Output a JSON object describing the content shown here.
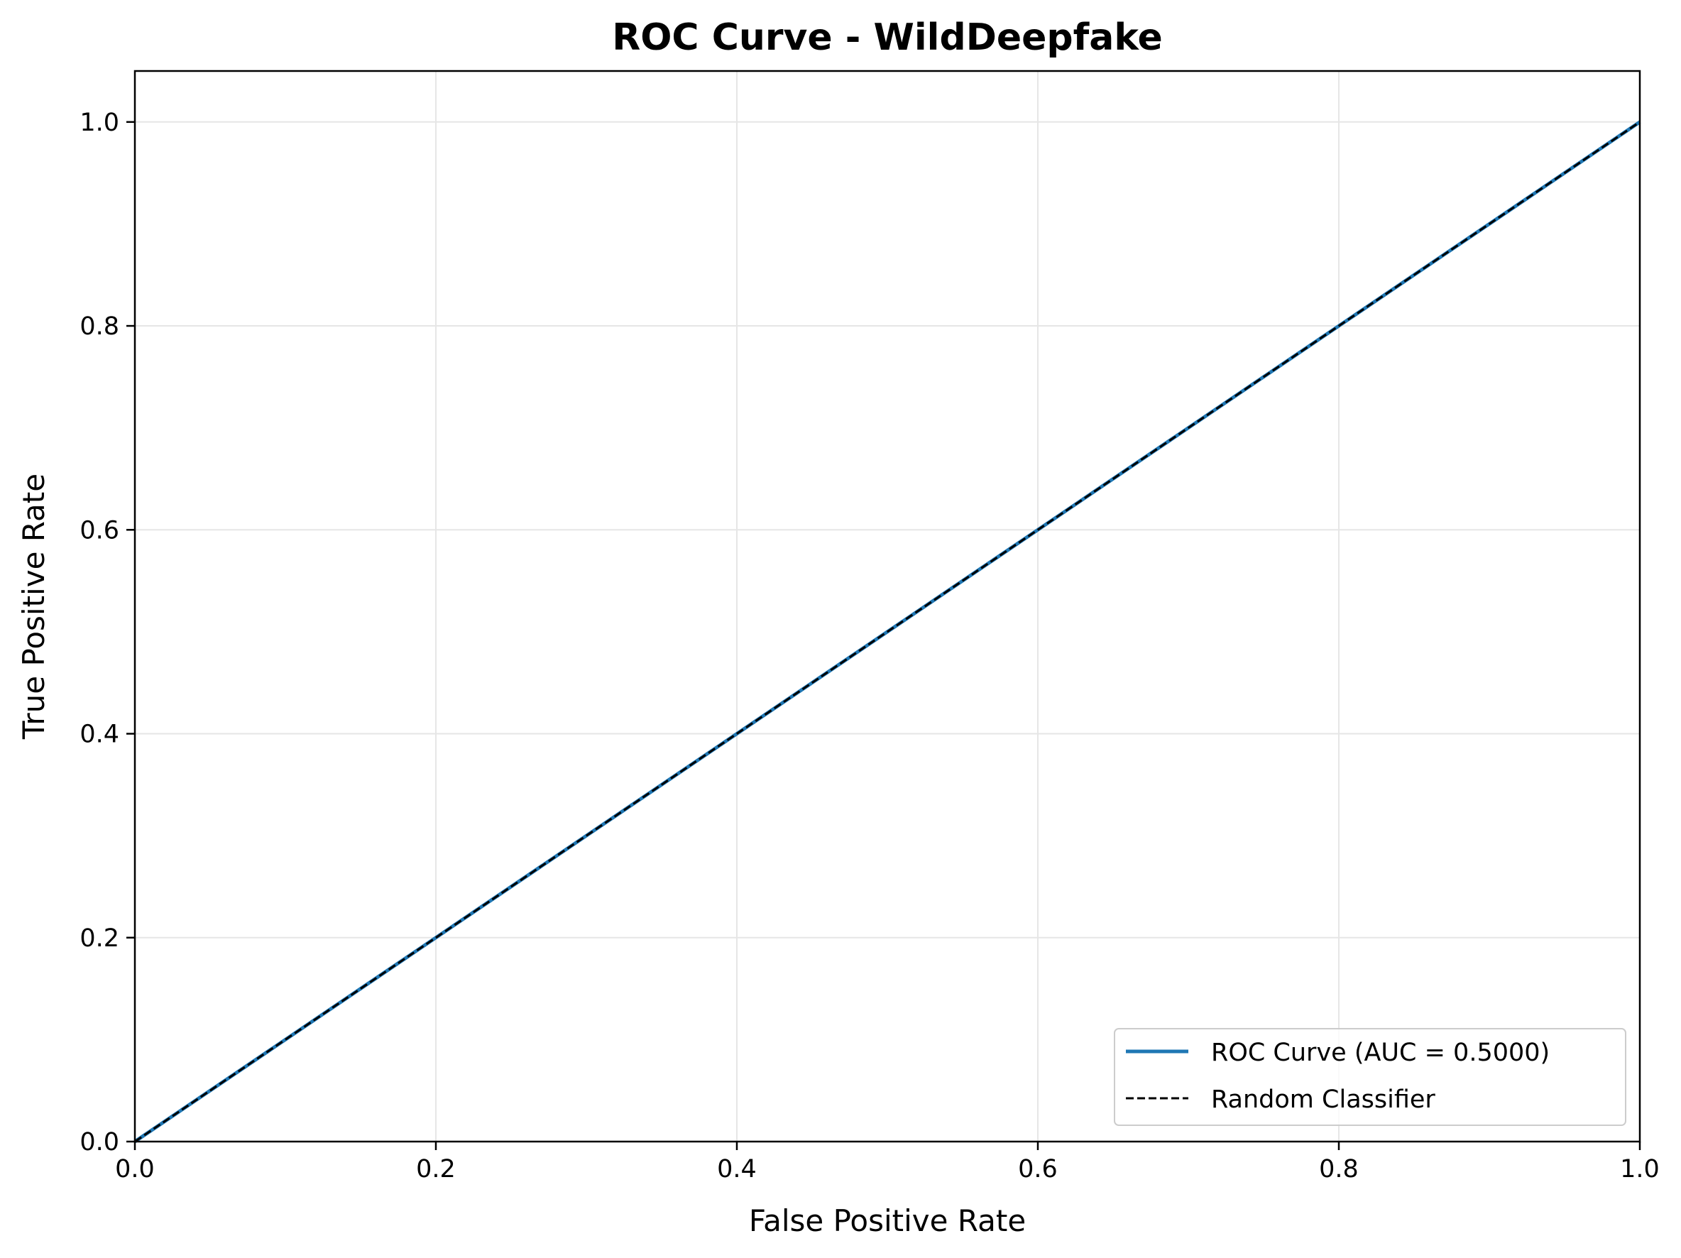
{
  "chart_data": {
    "type": "line",
    "title": "ROC Curve - WildDeepfake",
    "xlabel": "False Positive Rate",
    "ylabel": "True Positive Rate",
    "xlim": [
      0.0,
      1.0
    ],
    "ylim": [
      0.0,
      1.05
    ],
    "x_ticks": [
      0.0,
      0.2,
      0.4,
      0.6,
      0.8,
      1.0
    ],
    "y_ticks": [
      0.0,
      0.2,
      0.4,
      0.6,
      0.8,
      1.0
    ],
    "x_tick_labels": [
      "0.0",
      "0.2",
      "0.4",
      "0.6",
      "0.8",
      "1.0"
    ],
    "y_tick_labels": [
      "0.0",
      "0.2",
      "0.4",
      "0.6",
      "0.8",
      "1.0"
    ],
    "grid": true,
    "legend_position": "bottom-right",
    "series": [
      {
        "name": "ROC Curve (AUC = 0.5000)",
        "x": [
          0.0,
          1.0
        ],
        "y": [
          0.0,
          1.0
        ],
        "color": "#1f77b4",
        "style": "solid"
      },
      {
        "name": "Random Classifier",
        "x": [
          0.0,
          1.0
        ],
        "y": [
          0.0,
          1.0
        ],
        "color": "#000000",
        "style": "dashed"
      }
    ]
  },
  "colors": {
    "grid": "#e6e6e6",
    "axes": "#000000",
    "legend_border": "#cccccc"
  }
}
